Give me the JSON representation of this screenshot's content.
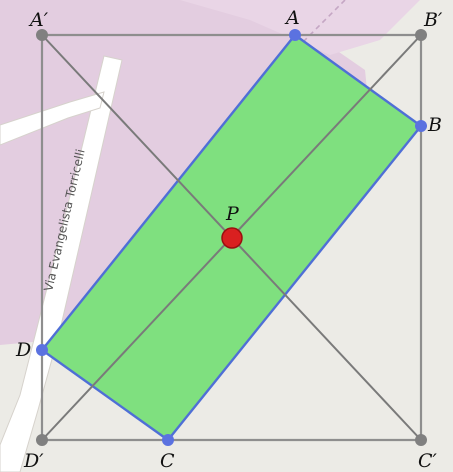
{
  "map": {
    "street_label": "Via Evangelista Torricelli",
    "colors": {
      "background": "#ecebe6",
      "park": "#e3cde0",
      "road": "#ffffff",
      "road_edge": "#d6d2cc",
      "dashed_path": "#c5a6c4"
    }
  },
  "diagram": {
    "labels": {
      "a_prime": "A′",
      "b_prime": "B′",
      "c_prime": "C′",
      "d_prime": "D′",
      "a": "A",
      "b": "B",
      "c": "C",
      "d": "D",
      "p": "P"
    },
    "colors": {
      "outer_square": "#8e8e8e",
      "diagonal": "#7a7a7a",
      "rect_fill": "#7fe07f",
      "rect_edge": "#4f6fd6",
      "rect_vertex": "#5b72e0",
      "corner_vertex": "#808080",
      "center_point": "#d92020",
      "center_point_edge": "#9a1010"
    }
  }
}
